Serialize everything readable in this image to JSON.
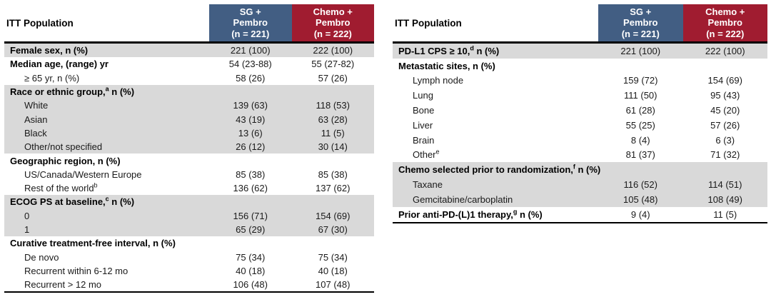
{
  "colors": {
    "header_blue": "#425E83",
    "header_red": "#A01C30",
    "row_shade": "#D9D9D9",
    "border_black": "#000000",
    "header_text": "#FFFFFF",
    "body_text": "#1A1A1A"
  },
  "tables": [
    {
      "id": "baseline-characteristics-left",
      "corner_label": "ITT Population",
      "columns": [
        {
          "id": "sg-pembro",
          "lines": [
            "SG +",
            "Pembro",
            "(n = 221)"
          ],
          "color_key": "header_blue"
        },
        {
          "id": "chemo-pembro",
          "lines": [
            "Chemo +",
            "Pembro",
            "(n = 222)"
          ],
          "color_key": "header_red"
        }
      ],
      "rows": [
        {
          "label": "Female sex, n (%)",
          "style": "section",
          "shaded": true,
          "values": [
            "221 (100)",
            "222 (100)"
          ]
        },
        {
          "label": "Median age, (range) yr",
          "style": "section",
          "shaded": false,
          "values": [
            "54 (23-88)",
            "55 (27-82)"
          ]
        },
        {
          "label": "≥ 65 yr, n (%)",
          "style": "sub",
          "shaded": false,
          "values": [
            "58 (26)",
            "57 (26)"
          ]
        },
        {
          "label": "Race or ethnic group,^a n (%)",
          "style": "section",
          "shaded": true,
          "values": [
            "",
            ""
          ]
        },
        {
          "label": "White",
          "style": "sub",
          "shaded": true,
          "values": [
            "139 (63)",
            "118 (53)"
          ]
        },
        {
          "label": "Asian",
          "style": "sub",
          "shaded": true,
          "values": [
            "43 (19)",
            "63 (28)"
          ]
        },
        {
          "label": "Black",
          "style": "sub",
          "shaded": true,
          "values": [
            "13 (6)",
            "11 (5)"
          ]
        },
        {
          "label": "Other/not specified",
          "style": "sub",
          "shaded": true,
          "values": [
            "26 (12)",
            "30 (14)"
          ]
        },
        {
          "label": "Geographic region, n (%)",
          "style": "section",
          "shaded": false,
          "values": [
            "",
            ""
          ]
        },
        {
          "label": "US/Canada/Western Europe",
          "style": "sub",
          "shaded": false,
          "values": [
            "85 (38)",
            "85 (38)"
          ]
        },
        {
          "label": "Rest of the world^b",
          "style": "sub",
          "shaded": false,
          "values": [
            "136 (62)",
            "137 (62)"
          ]
        },
        {
          "label": "ECOG PS at baseline,^c n (%)",
          "style": "section",
          "shaded": true,
          "values": [
            "",
            ""
          ]
        },
        {
          "label": "0",
          "style": "sub",
          "shaded": true,
          "values": [
            "156 (71)",
            "154 (69)"
          ]
        },
        {
          "label": "1",
          "style": "sub",
          "shaded": true,
          "values": [
            "65 (29)",
            "67 (30)"
          ]
        },
        {
          "label": "Curative treatment-free interval, n (%)",
          "style": "section",
          "shaded": false,
          "values": [
            "",
            ""
          ]
        },
        {
          "label": "De novo",
          "style": "sub",
          "shaded": false,
          "values": [
            "75 (34)",
            "75 (34)"
          ]
        },
        {
          "label": "Recurrent within 6-12 mo",
          "style": "sub",
          "shaded": false,
          "values": [
            "40 (18)",
            "40 (18)"
          ]
        },
        {
          "label": "Recurrent > 12 mo",
          "style": "sub",
          "shaded": false,
          "values": [
            "106 (48)",
            "107 (48)"
          ]
        }
      ]
    },
    {
      "id": "baseline-characteristics-right",
      "corner_label": "ITT Population",
      "columns": [
        {
          "id": "sg-pembro",
          "lines": [
            "SG +",
            "Pembro",
            "(n = 221)"
          ],
          "color_key": "header_blue"
        },
        {
          "id": "chemo-pembro",
          "lines": [
            "Chemo +",
            "Pembro",
            "(n = 222)"
          ],
          "color_key": "header_red"
        }
      ],
      "rows": [
        {
          "label": "PD-L1 CPS ≥ 10,^d n (%)",
          "style": "section",
          "shaded": true,
          "values": [
            "221 (100)",
            "222 (100)"
          ]
        },
        {
          "label": "Metastatic sites, n (%)",
          "style": "section",
          "shaded": false,
          "values": [
            "",
            ""
          ]
        },
        {
          "label": "Lymph node",
          "style": "sub",
          "shaded": false,
          "values": [
            "159 (72)",
            "154 (69)"
          ]
        },
        {
          "label": "Lung",
          "style": "sub",
          "shaded": false,
          "values": [
            "111 (50)",
            "95 (43)"
          ]
        },
        {
          "label": "Bone",
          "style": "sub",
          "shaded": false,
          "values": [
            "61 (28)",
            "45 (20)"
          ]
        },
        {
          "label": "Liver",
          "style": "sub",
          "shaded": false,
          "values": [
            "55 (25)",
            "57 (26)"
          ]
        },
        {
          "label": "Brain",
          "style": "sub",
          "shaded": false,
          "values": [
            "8 (4)",
            "6 (3)"
          ]
        },
        {
          "label": "Other^e",
          "style": "sub",
          "shaded": false,
          "values": [
            "81 (37)",
            "71 (32)"
          ]
        },
        {
          "label": "Chemo selected prior to randomization,^f n (%)",
          "style": "section",
          "shaded": true,
          "values": [
            "",
            ""
          ]
        },
        {
          "label": "Taxane",
          "style": "sub",
          "shaded": true,
          "values": [
            "116 (52)",
            "114 (51)"
          ]
        },
        {
          "label": "Gemcitabine/carboplatin",
          "style": "sub",
          "shaded": true,
          "values": [
            "105 (48)",
            "108 (49)"
          ]
        },
        {
          "label": "Prior anti-PD-(L)1 therapy,^g n (%)",
          "style": "section",
          "shaded": false,
          "values": [
            "9 (4)",
            "11 (5)"
          ]
        }
      ]
    }
  ]
}
